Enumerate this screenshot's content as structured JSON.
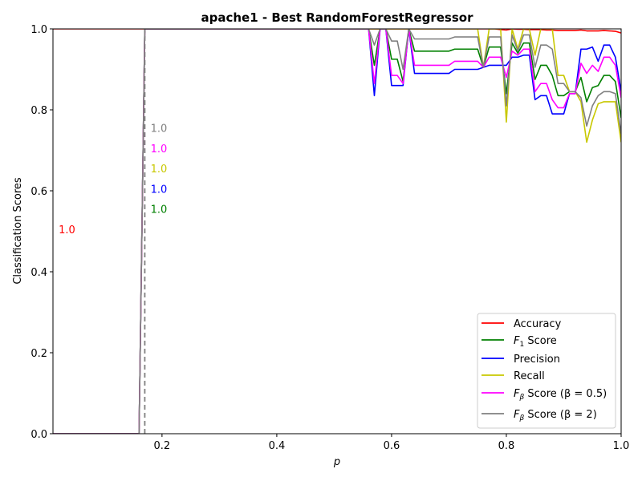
{
  "chart_data": {
    "type": "line",
    "title": "apache1 - Best RandomForestRegressor",
    "xlabel": "p",
    "ylabel": "Classification Scores",
    "xlim": [
      0.01,
      1.0
    ],
    "ylim": [
      0.0,
      1.0
    ],
    "xticks": [
      0.2,
      0.4,
      0.6,
      0.8,
      1.0
    ],
    "yticks": [
      0.0,
      0.2,
      0.4,
      0.6,
      0.8,
      1.0
    ],
    "grid": false,
    "legend_position": "lower-right",
    "x": [
      0.01,
      0.155,
      0.16,
      0.165,
      0.17,
      0.56,
      0.57,
      0.58,
      0.59,
      0.6,
      0.61,
      0.62,
      0.63,
      0.64,
      0.65,
      0.66,
      0.67,
      0.68,
      0.69,
      0.7,
      0.71,
      0.72,
      0.73,
      0.74,
      0.75,
      0.76,
      0.77,
      0.78,
      0.79,
      0.8,
      0.81,
      0.82,
      0.83,
      0.84,
      0.85,
      0.86,
      0.87,
      0.88,
      0.89,
      0.9,
      0.91,
      0.92,
      0.93,
      0.94,
      0.95,
      0.96,
      0.97,
      0.98,
      0.99,
      1.0
    ],
    "series": [
      {
        "name": "Accuracy",
        "color": "#ff0000",
        "values": [
          1.0,
          1.0,
          1.0,
          1.0,
          1.0,
          1.0,
          1.0,
          1.0,
          1.0,
          1.0,
          1.0,
          1.0,
          1.0,
          1.0,
          1.0,
          1.0,
          1.0,
          1.0,
          1.0,
          1.0,
          1.0,
          1.0,
          1.0,
          1.0,
          1.0,
          1.0,
          1.0,
          1.0,
          0.998,
          0.997,
          1.0,
          0.999,
          0.999,
          0.998,
          0.998,
          0.998,
          0.997,
          0.997,
          0.996,
          0.996,
          0.996,
          0.996,
          0.997,
          0.995,
          0.995,
          0.995,
          0.996,
          0.995,
          0.994,
          0.99
        ]
      },
      {
        "name": "F1 Score",
        "label_main": "F",
        "label_sub": "1",
        "label_rest": " Score",
        "color": "#008000",
        "values": [
          0.0,
          0.0,
          0.0,
          0.5,
          1.0,
          1.0,
          0.91,
          1.0,
          1.0,
          0.925,
          0.925,
          0.87,
          1.0,
          0.945,
          0.945,
          0.945,
          0.945,
          0.945,
          0.945,
          0.945,
          0.95,
          0.95,
          0.95,
          0.95,
          0.95,
          0.905,
          0.955,
          0.955,
          0.955,
          0.84,
          0.965,
          0.94,
          0.965,
          0.965,
          0.875,
          0.91,
          0.91,
          0.885,
          0.835,
          0.835,
          0.845,
          0.845,
          0.88,
          0.82,
          0.855,
          0.86,
          0.885,
          0.885,
          0.87,
          0.78
        ]
      },
      {
        "name": "Precision",
        "color": "#0000ff",
        "values": [
          0.0,
          0.0,
          0.0,
          0.5,
          1.0,
          1.0,
          0.835,
          1.0,
          1.0,
          0.86,
          0.86,
          0.86,
          1.0,
          0.89,
          0.89,
          0.89,
          0.89,
          0.89,
          0.89,
          0.89,
          0.9,
          0.9,
          0.9,
          0.9,
          0.9,
          0.905,
          0.91,
          0.91,
          0.91,
          0.91,
          0.93,
          0.93,
          0.935,
          0.935,
          0.825,
          0.835,
          0.835,
          0.79,
          0.79,
          0.79,
          0.84,
          0.84,
          0.95,
          0.95,
          0.955,
          0.92,
          0.96,
          0.96,
          0.93,
          0.845
        ]
      },
      {
        "name": "Recall",
        "color": "#c8c800",
        "values": [
          0.0,
          0.0,
          0.0,
          0.5,
          1.0,
          1.0,
          1.0,
          1.0,
          1.0,
          1.0,
          1.0,
          1.0,
          1.0,
          1.0,
          1.0,
          1.0,
          1.0,
          1.0,
          1.0,
          1.0,
          1.0,
          1.0,
          1.0,
          1.0,
          1.0,
          0.905,
          1.0,
          1.0,
          1.0,
          0.77,
          1.0,
          0.95,
          1.0,
          1.0,
          0.935,
          1.0,
          1.0,
          1.0,
          0.885,
          0.885,
          0.845,
          0.845,
          0.82,
          0.72,
          0.775,
          0.815,
          0.82,
          0.82,
          0.82,
          0.72
        ]
      },
      {
        "name": "Fbeta Score (beta=0.5)",
        "label_main": "F",
        "label_sub": "β",
        "label_rest": " Score (β = 0.5)",
        "color": "#ff00ff",
        "values": [
          0.0,
          0.0,
          0.0,
          0.5,
          1.0,
          1.0,
          0.865,
          1.0,
          1.0,
          0.885,
          0.885,
          0.865,
          1.0,
          0.91,
          0.91,
          0.91,
          0.91,
          0.91,
          0.91,
          0.91,
          0.92,
          0.92,
          0.92,
          0.92,
          0.92,
          0.905,
          0.93,
          0.93,
          0.93,
          0.88,
          0.945,
          0.935,
          0.95,
          0.95,
          0.845,
          0.865,
          0.865,
          0.825,
          0.805,
          0.805,
          0.84,
          0.84,
          0.915,
          0.89,
          0.91,
          0.895,
          0.93,
          0.93,
          0.91,
          0.83
        ]
      },
      {
        "name": "Fbeta Score (beta=2)",
        "label_main": "F",
        "label_sub": "β",
        "label_rest": " Score (β = 2)",
        "color": "#808080",
        "values": [
          0.0,
          0.0,
          0.0,
          0.5,
          1.0,
          1.0,
          0.96,
          1.0,
          1.0,
          0.97,
          0.97,
          0.9,
          1.0,
          0.975,
          0.975,
          0.975,
          0.975,
          0.975,
          0.975,
          0.975,
          0.98,
          0.98,
          0.98,
          0.98,
          0.98,
          0.905,
          0.98,
          0.98,
          0.98,
          0.81,
          0.985,
          0.945,
          0.985,
          0.985,
          0.905,
          0.96,
          0.96,
          0.95,
          0.865,
          0.865,
          0.845,
          0.845,
          0.83,
          0.76,
          0.81,
          0.835,
          0.845,
          0.845,
          0.84,
          0.74
        ]
      }
    ],
    "dashed_line": {
      "x": [
        0.17,
        0.17
      ],
      "y": [
        0.0,
        1.0
      ],
      "color": "#808080"
    },
    "annotations": [
      {
        "text": "1.0",
        "x": 0.18,
        "y": 0.755,
        "color": "#808080"
      },
      {
        "text": "1.0",
        "x": 0.18,
        "y": 0.705,
        "color": "#ff00ff"
      },
      {
        "text": "1.0",
        "x": 0.18,
        "y": 0.655,
        "color": "#c8c800"
      },
      {
        "text": "1.0",
        "x": 0.18,
        "y": 0.605,
        "color": "#0000ff"
      },
      {
        "text": "1.0",
        "x": 0.18,
        "y": 0.555,
        "color": "#008000"
      },
      {
        "text": "1.0",
        "x": 0.02,
        "y": 0.505,
        "color": "#ff0000"
      }
    ]
  }
}
